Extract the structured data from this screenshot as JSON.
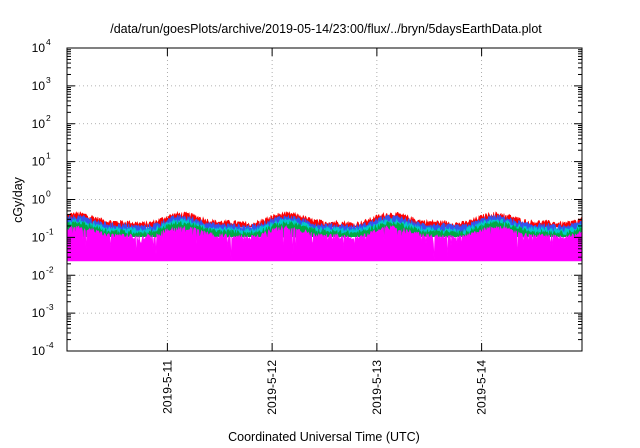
{
  "chart_data": {
    "type": "area",
    "title": "/data/run/goesPlots/archive/2019-05-14/23:00/flux/../bryn/5daysEarthData.plot",
    "xlabel": "Coordinated Universal Time (UTC)",
    "ylabel": "cGy/day",
    "yscale": "log",
    "ylim": [
      0.0001,
      10000
    ],
    "xlim": [
      "2019-05-10T01:00",
      "2019-05-14T23:00"
    ],
    "grid": true,
    "y_ticks": [
      {
        "base": "10",
        "exp": "-4",
        "value": 0.0001
      },
      {
        "base": "10",
        "exp": "-3",
        "value": 0.001
      },
      {
        "base": "10",
        "exp": "-2",
        "value": 0.01
      },
      {
        "base": "10",
        "exp": "-1",
        "value": 0.1
      },
      {
        "base": "10",
        "exp": "0",
        "value": 1
      },
      {
        "base": "10",
        "exp": "1",
        "value": 10
      },
      {
        "base": "10",
        "exp": "2",
        "value": 100
      },
      {
        "base": "10",
        "exp": "3",
        "value": 1000
      },
      {
        "base": "10",
        "exp": "4",
        "value": 10000
      }
    ],
    "x_ticks": [
      {
        "label": "2019-5-11",
        "value": "2019-05-11T00:00"
      },
      {
        "label": "2019-5-12",
        "value": "2019-05-12T00:00"
      },
      {
        "label": "2019-5-13",
        "value": "2019-05-13T00:00"
      },
      {
        "label": "2019-5-14",
        "value": "2019-05-14T00:00"
      }
    ],
    "series": [
      {
        "color": "#ff0000",
        "baseline": 0.3,
        "ymin": 0.2,
        "ymax": 0.55
      },
      {
        "color": "#3355ee",
        "baseline": 0.25,
        "ymin": 0.14,
        "ymax": 0.45
      },
      {
        "color": "#00cccc",
        "baseline": 0.2,
        "ymin": 0.12,
        "ymax": 0.32
      },
      {
        "color": "#00aa44",
        "baseline": 0.17,
        "ymin": 0.11,
        "ymax": 0.26
      },
      {
        "color": "#ff00ff",
        "baseline": 0.13,
        "ymin": 0.025,
        "ymax": 0.22
      }
    ]
  }
}
